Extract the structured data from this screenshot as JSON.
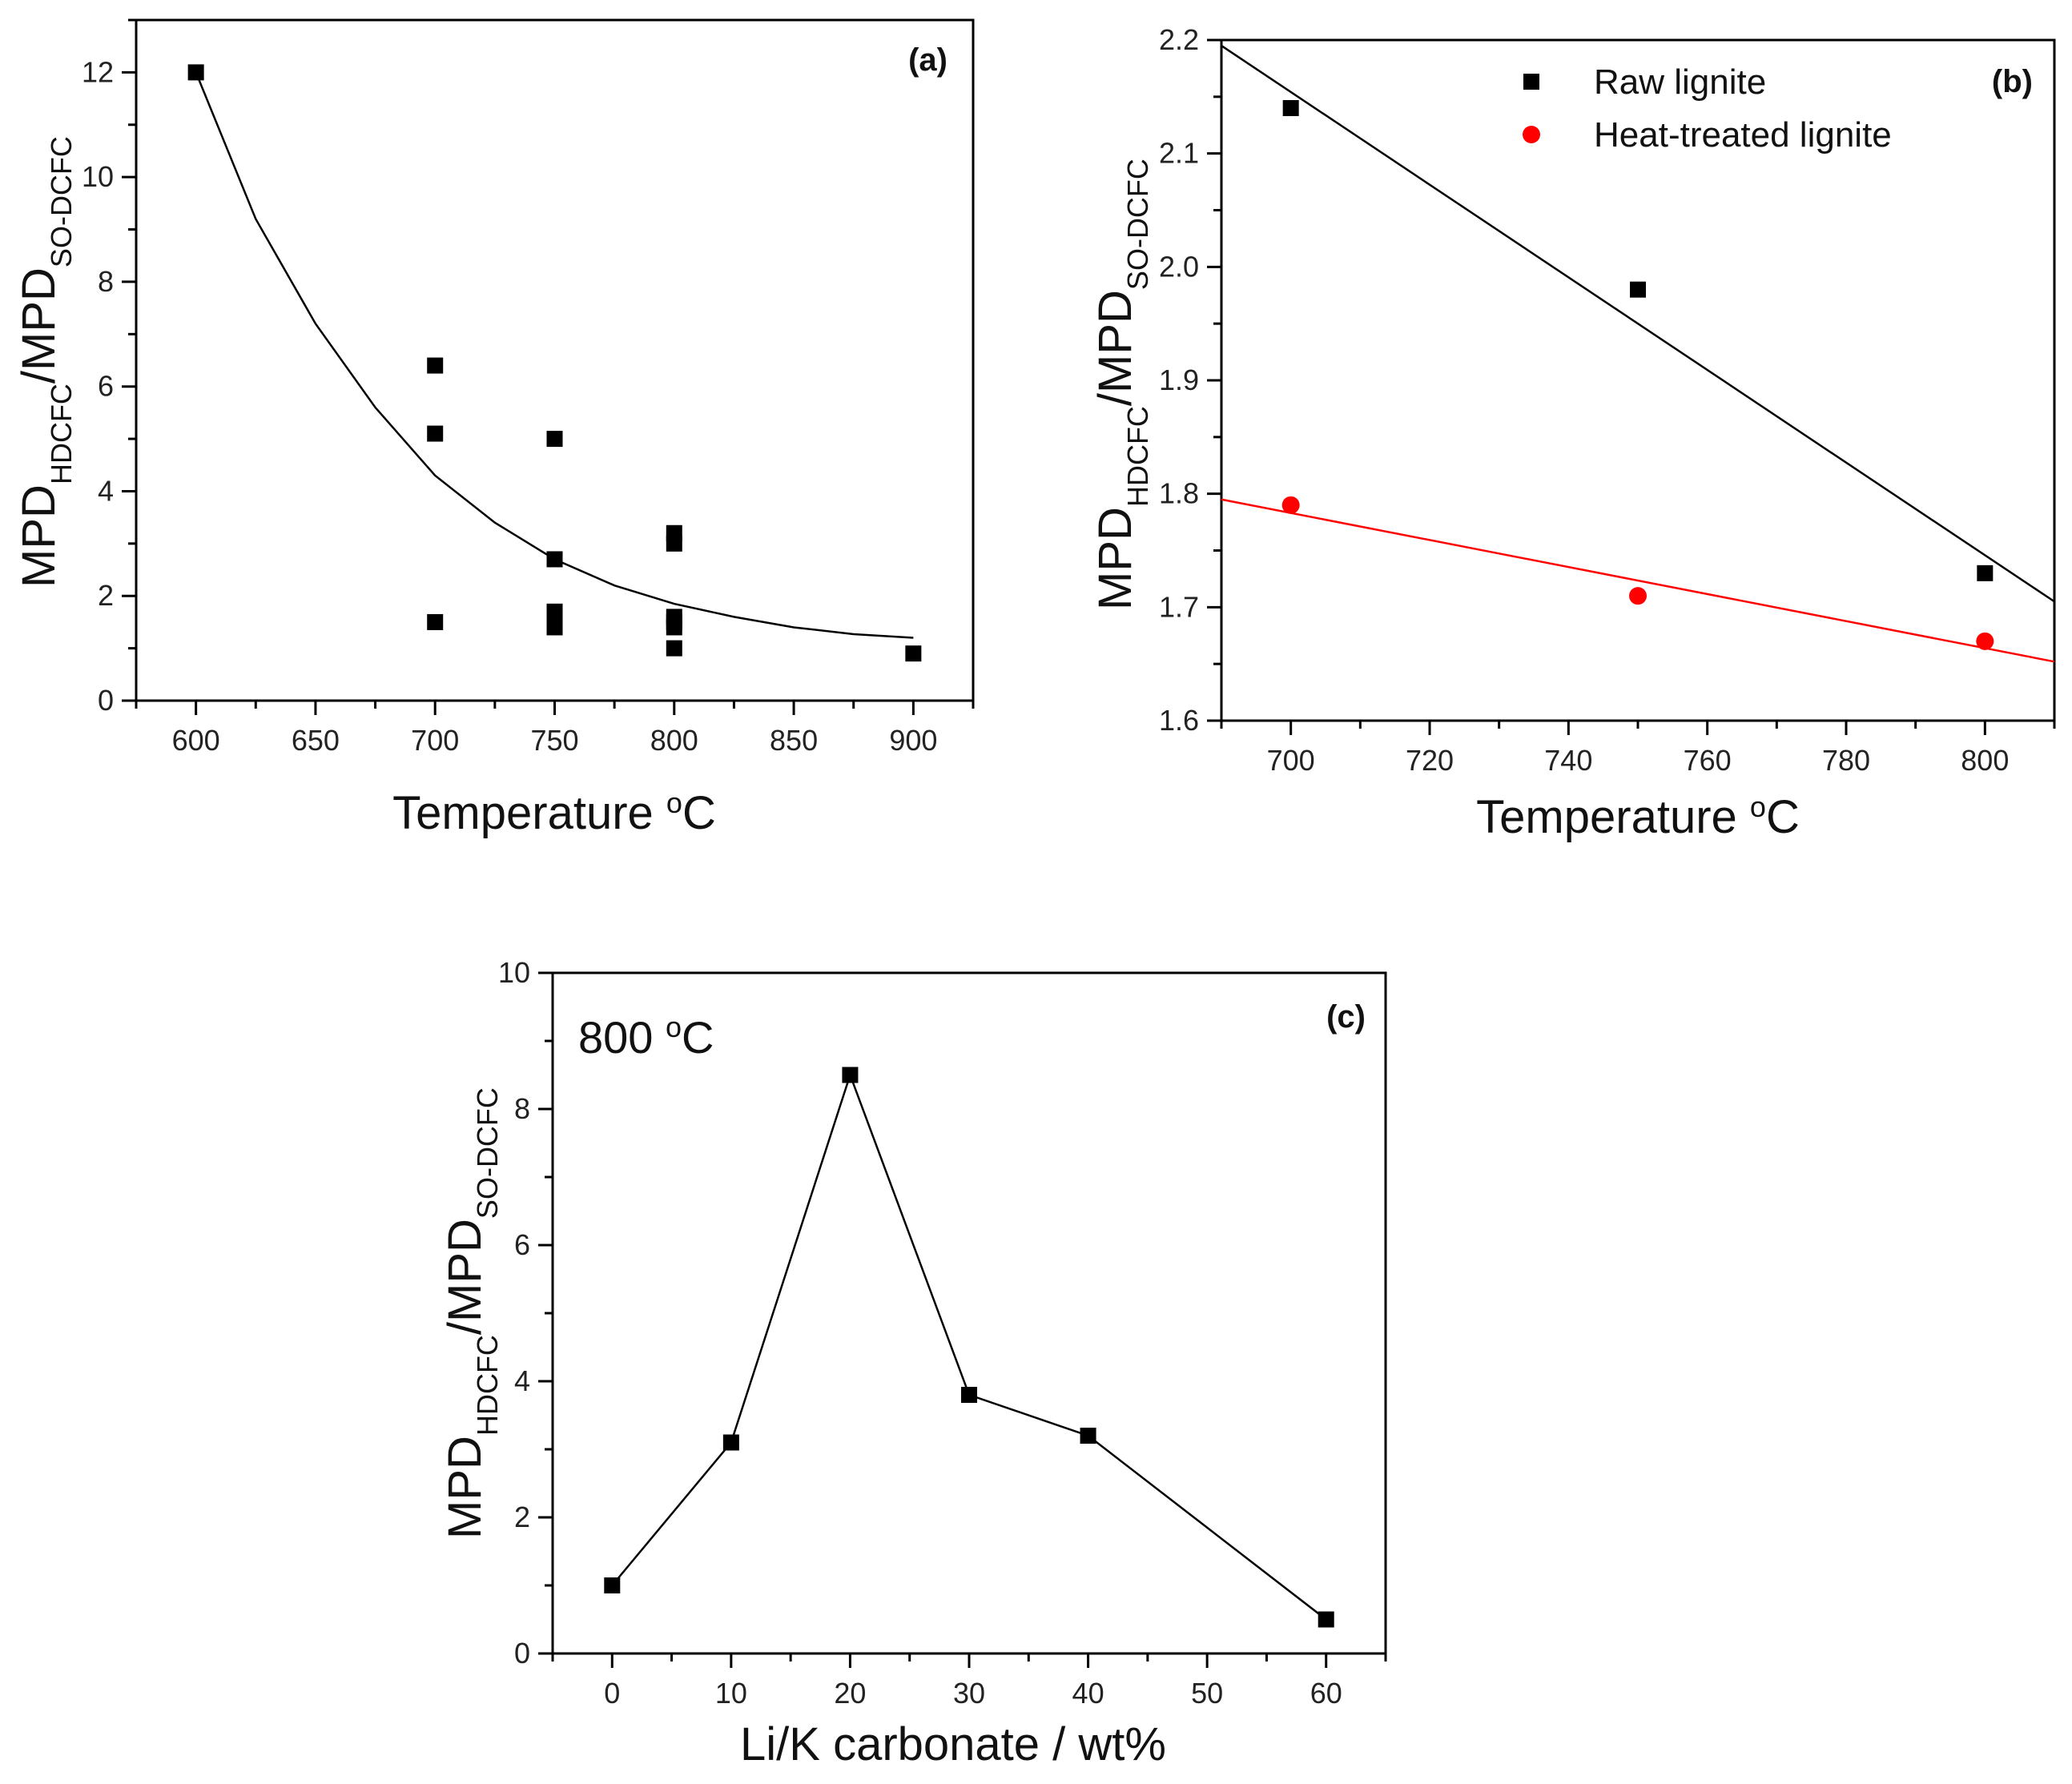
{
  "chart_data": [
    {
      "id": "a",
      "type": "scatter",
      "panel_label": "(a)",
      "xlabel": "Temperature",
      "xlabel_sup": "o",
      "xlabel_unit": "C",
      "ylabel": "MPD",
      "ylabel_sub1": "HDCFC",
      "ylabel_mid": "/MPD",
      "ylabel_sub2": "SO-DCFC",
      "xlim": [
        575,
        925
      ],
      "ylim": [
        0,
        13
      ],
      "xticks": [
        600,
        650,
        700,
        750,
        800,
        850,
        900
      ],
      "yticks": [
        0,
        2,
        4,
        6,
        8,
        10,
        12
      ],
      "series": [
        {
          "name": "data",
          "marker": "square",
          "color": "#000000",
          "x": [
            600,
            700,
            700,
            700,
            750,
            750,
            750,
            750,
            800,
            800,
            800,
            800,
            800,
            800,
            900
          ],
          "y": [
            12.0,
            6.4,
            5.1,
            1.5,
            5.0,
            2.7,
            1.7,
            1.4,
            3.2,
            3.0,
            1.6,
            1.5,
            1.4,
            1.0,
            0.9
          ]
        },
        {
          "name": "fit",
          "type": "line",
          "color": "#000000",
          "x": [
            600,
            625,
            650,
            675,
            700,
            725,
            750,
            775,
            800,
            825,
            850,
            875,
            900
          ],
          "y": [
            12.0,
            9.2,
            7.2,
            5.6,
            4.3,
            3.4,
            2.7,
            2.2,
            1.85,
            1.6,
            1.4,
            1.27,
            1.2
          ]
        }
      ]
    },
    {
      "id": "b",
      "type": "scatter",
      "panel_label": "(b)",
      "xlabel": "Temperature",
      "xlabel_sup": "o",
      "xlabel_unit": "C",
      "ylabel": "MPD",
      "ylabel_sub1": "HDCFC",
      "ylabel_mid": "/MPD",
      "ylabel_sub2": "SO-DCFC",
      "xlim": [
        690,
        810
      ],
      "ylim": [
        1.6,
        2.2
      ],
      "xticks": [
        700,
        720,
        740,
        760,
        780,
        800
      ],
      "yticks": [
        1.6,
        1.7,
        1.8,
        1.9,
        2.0,
        2.1,
        2.2
      ],
      "legend_position": "top-center",
      "series": [
        {
          "name": "Raw lignite",
          "marker": "square",
          "color": "#000000",
          "x": [
            700,
            750,
            800
          ],
          "y": [
            2.14,
            1.98,
            1.73
          ],
          "fit": {
            "x": [
              690,
              810
            ],
            "y": [
              2.195,
              1.705
            ]
          }
        },
        {
          "name": "Heat-treated lignite",
          "marker": "circle",
          "color": "#ff0000",
          "x": [
            700,
            750,
            800
          ],
          "y": [
            1.79,
            1.71,
            1.67
          ],
          "fit": {
            "x": [
              690,
              810
            ],
            "y": [
              1.795,
              1.652
            ]
          }
        }
      ]
    },
    {
      "id": "c",
      "type": "line",
      "panel_label": "(c)",
      "annotation": "800",
      "annotation_sup": "o",
      "annotation_unit": "C",
      "xlabel": "Li/K carbonate / wt%",
      "ylabel": "MPD",
      "ylabel_sub1": "HDCFC",
      "ylabel_mid": "/MPD",
      "ylabel_sub2": "SO-DCFC",
      "xlim": [
        -5,
        65
      ],
      "ylim": [
        0,
        10
      ],
      "xticks": [
        0,
        10,
        20,
        30,
        40,
        50,
        60
      ],
      "yticks": [
        0,
        2,
        4,
        6,
        8,
        10
      ],
      "series": [
        {
          "name": "data",
          "marker": "square",
          "color": "#000000",
          "x": [
            0,
            10,
            20,
            30,
            40,
            60
          ],
          "y": [
            1.0,
            3.1,
            8.5,
            3.8,
            3.2,
            0.5
          ]
        }
      ]
    }
  ]
}
